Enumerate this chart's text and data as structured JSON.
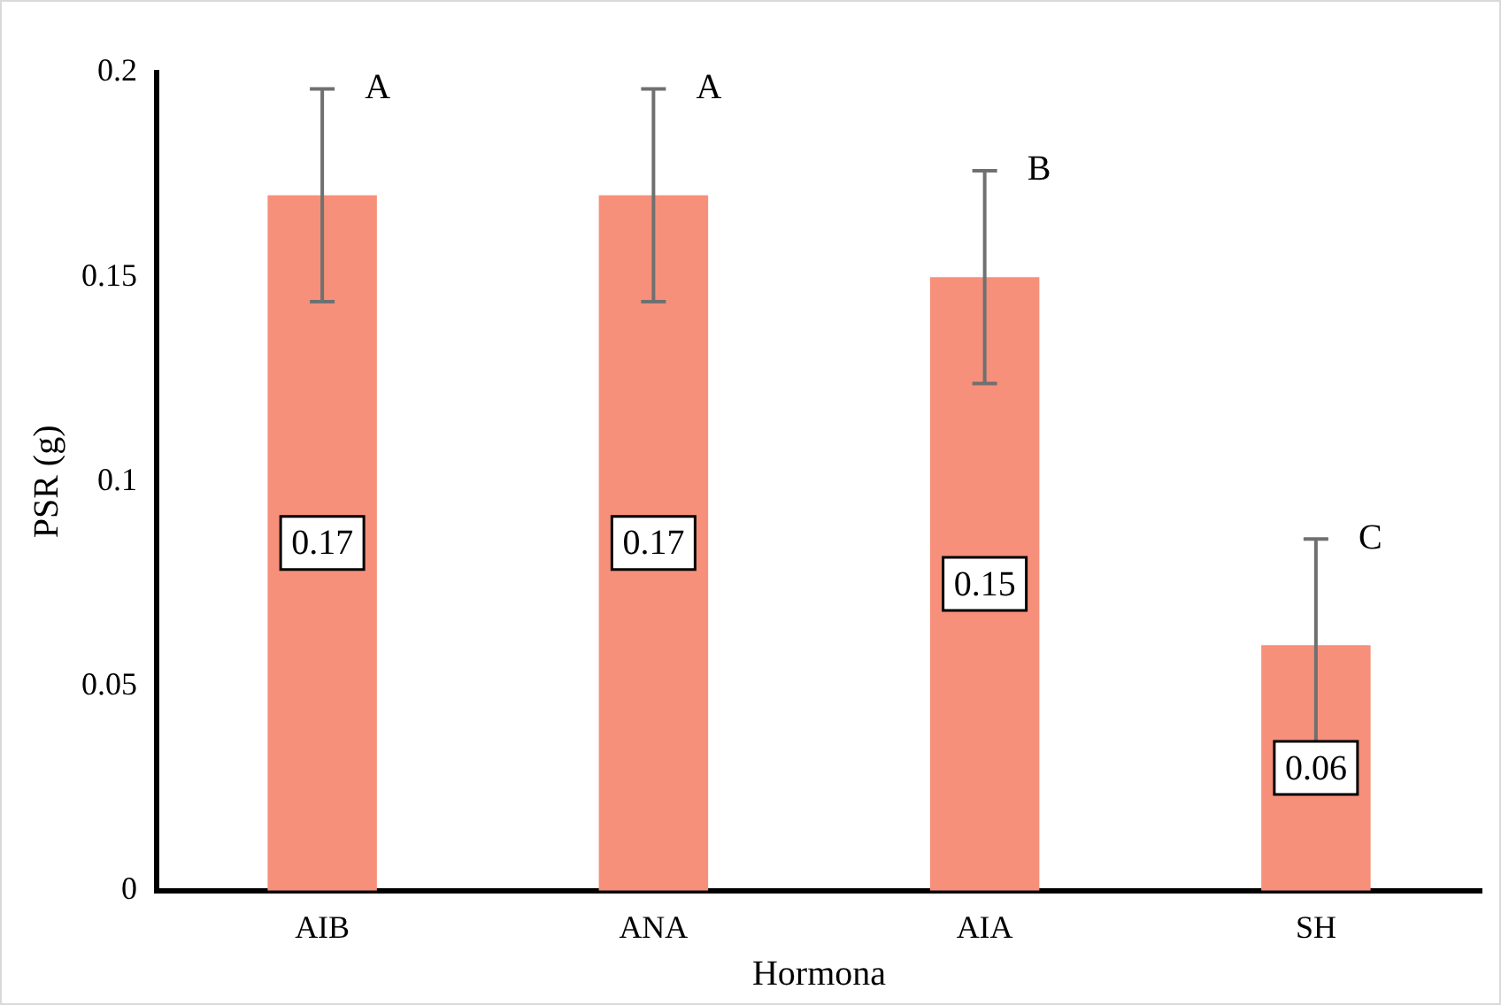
{
  "chart_data": {
    "type": "bar",
    "xlabel": "Hormona",
    "ylabel": "PSR (g)",
    "categories": [
      "AIB",
      "ANA",
      "AIA",
      "SH"
    ],
    "values": [
      0.17,
      0.17,
      0.15,
      0.06
    ],
    "errors": [
      0.026,
      0.026,
      0.026,
      0.026
    ],
    "color": "#f6907a",
    "ylim": [
      0,
      0.2
    ],
    "yticks": [
      0,
      0.05,
      0.1,
      0.15,
      0.2
    ],
    "grid": false,
    "legend": false,
    "data_labels": true,
    "annotations": [
      {
        "text": "A",
        "x": "AIB",
        "y": 0.196
      },
      {
        "text": "A",
        "x": "ANA",
        "y": 0.196
      },
      {
        "text": "B",
        "x": "AIA",
        "y": 0.176
      },
      {
        "text": "C",
        "x": "SH",
        "y": 0.086
      }
    ]
  }
}
